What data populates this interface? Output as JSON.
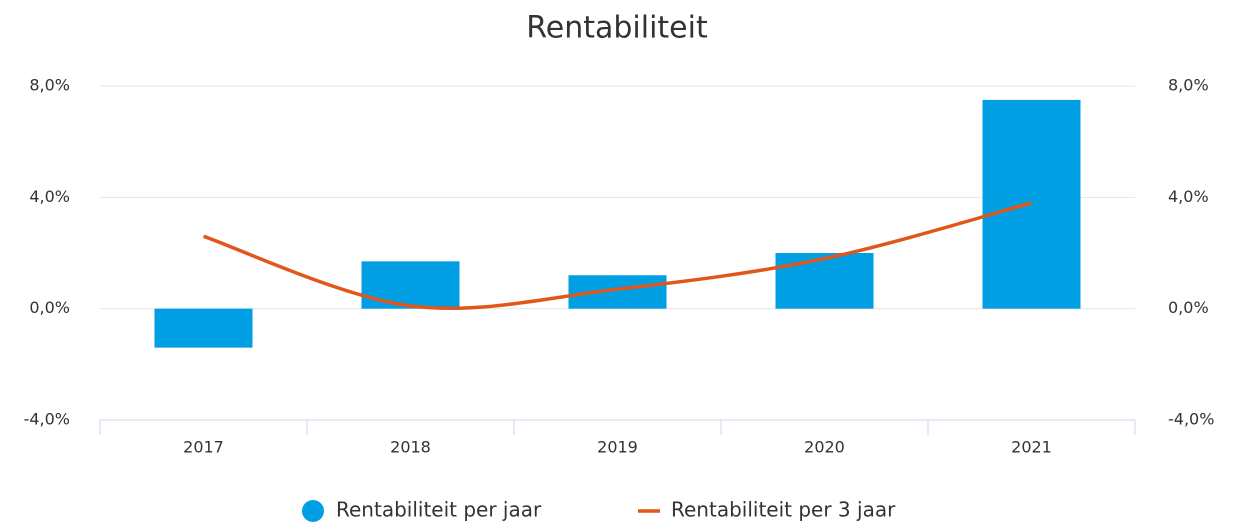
{
  "chart_data": {
    "type": "bar",
    "title": "Rentabiliteit",
    "categories": [
      "2017",
      "2018",
      "2019",
      "2020",
      "2021"
    ],
    "series": [
      {
        "name": "Rentabiliteit per jaar",
        "type": "bar",
        "color": "#009fe3",
        "axis": "y",
        "values": [
          -1.4,
          1.7,
          1.2,
          2.0,
          7.5
        ]
      },
      {
        "name": "Rentabiliteit per 3 jaar",
        "type": "line",
        "color": "#e0561b",
        "axis": "y2",
        "values": [
          2.6,
          0.1,
          0.7,
          1.8,
          3.8
        ]
      }
    ],
    "ylim": [
      -4,
      8
    ],
    "yticks": [
      {
        "value": -4,
        "label": "-4,0%"
      },
      {
        "value": 0,
        "label": "0,0%"
      },
      {
        "value": 4,
        "label": "4,0%"
      },
      {
        "value": 8,
        "label": "8,0%"
      }
    ],
    "y2lim": [
      -4,
      8
    ],
    "y2ticks": [
      {
        "value": -4,
        "label": "-4,0%"
      },
      {
        "value": 0,
        "label": "0,0%"
      },
      {
        "value": 4,
        "label": "4,0%"
      },
      {
        "value": 8,
        "label": "8,0%"
      }
    ],
    "grid": true,
    "legend": "bottom"
  }
}
